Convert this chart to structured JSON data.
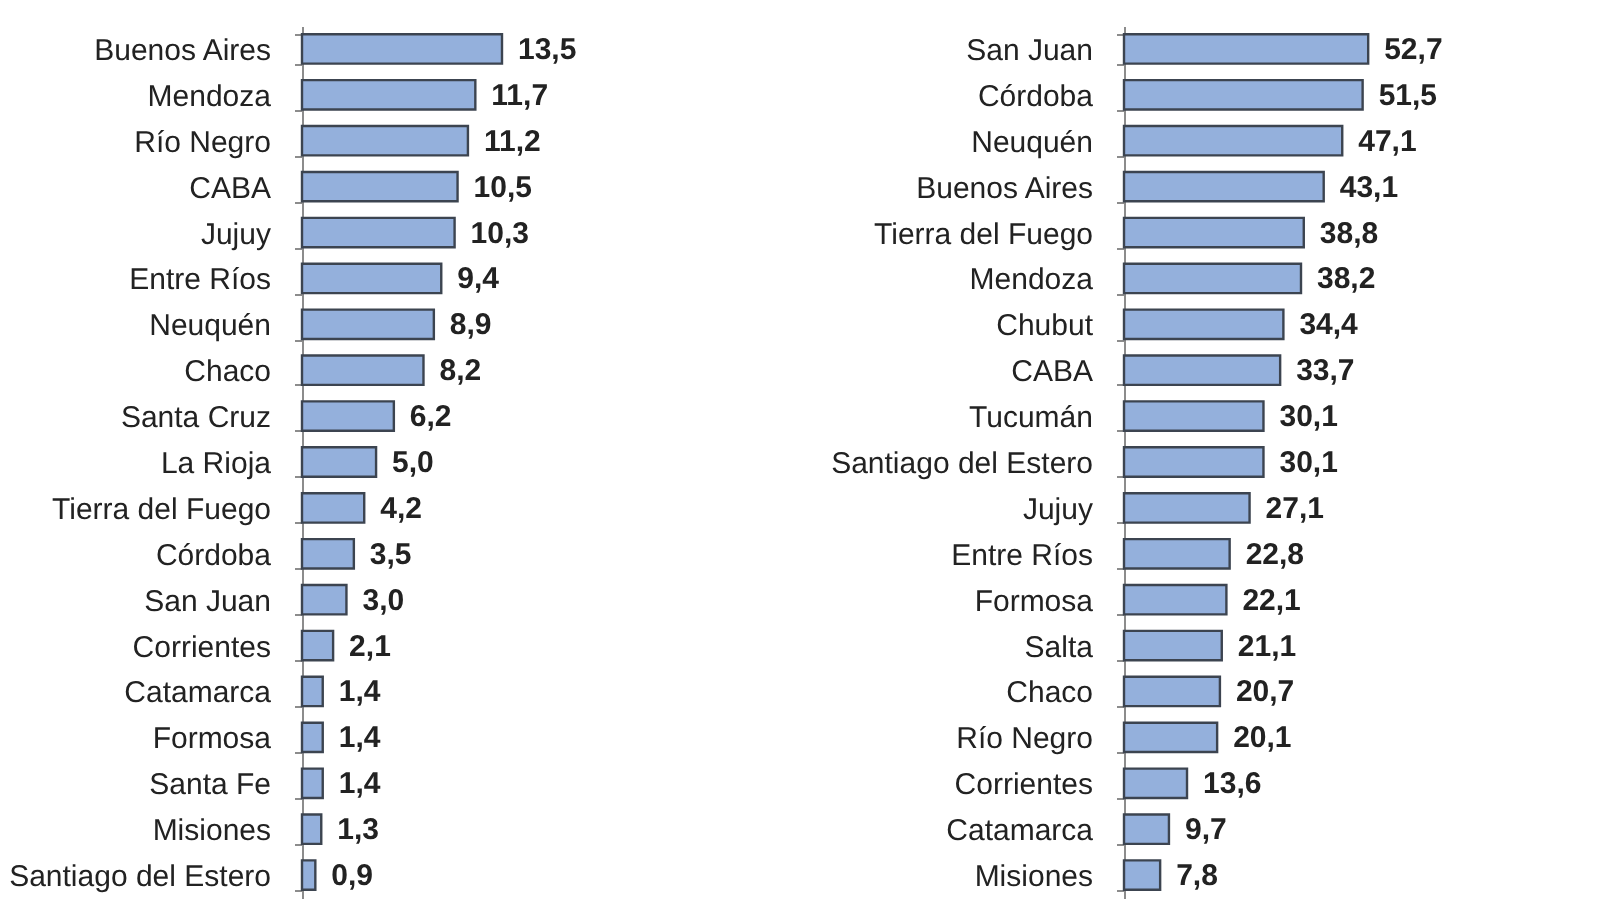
{
  "chart_data": [
    {
      "type": "bar",
      "orientation": "horizontal",
      "color": "#94b0dc",
      "categories": [
        "Buenos Aires",
        "Mendoza",
        "Río Negro",
        "CABA",
        "Jujuy",
        "Entre Ríos",
        "Neuquén",
        "Chaco",
        "Santa Cruz",
        "La Rioja",
        "Tierra del Fuego",
        "Córdoba",
        "San Juan",
        "Corrientes",
        "Catamarca",
        "Formosa",
        "Santa Fe",
        "Misiones",
        "Santiago del Estero"
      ],
      "values": [
        13.5,
        11.7,
        11.2,
        10.5,
        10.3,
        9.4,
        8.9,
        8.2,
        6.2,
        5.0,
        4.2,
        3.5,
        3.0,
        2.1,
        1.4,
        1.4,
        1.4,
        1.3,
        0.9
      ],
      "value_labels": [
        "13,5",
        "11,7",
        "11,2",
        "10,5",
        "10,3",
        "9,4",
        "8,9",
        "8,2",
        "6,2",
        "5,0",
        "4,2",
        "3,5",
        "3,0",
        "2,1",
        "1,4",
        "1,4",
        "1,4",
        "1,3",
        "0,9"
      ]
    },
    {
      "type": "bar",
      "orientation": "horizontal",
      "color": "#94b0dc",
      "categories": [
        "San Juan",
        "Córdoba",
        "Neuquén",
        "Buenos Aires",
        "Tierra del Fuego",
        "Mendoza",
        "Chubut",
        "CABA",
        "Tucumán",
        "Santiago del Estero",
        "Jujuy",
        "Entre Ríos",
        "Formosa",
        "Salta",
        "Chaco",
        "Río Negro",
        "Corrientes",
        "Catamarca",
        "Misiones"
      ],
      "values": [
        52.7,
        51.5,
        47.1,
        43.1,
        38.8,
        38.2,
        34.4,
        33.7,
        30.1,
        30.1,
        27.1,
        22.8,
        22.1,
        21.1,
        20.7,
        20.1,
        13.6,
        9.7,
        7.8
      ],
      "value_labels": [
        "52,7",
        "51,5",
        "47,1",
        "43,1",
        "38,8",
        "38,2",
        "34,4",
        "33,7",
        "30,1",
        "30,1",
        "27,1",
        "22,8",
        "22,1",
        "21,1",
        "20,7",
        "20,1",
        "13,6",
        "9,7",
        "7,8"
      ]
    }
  ]
}
